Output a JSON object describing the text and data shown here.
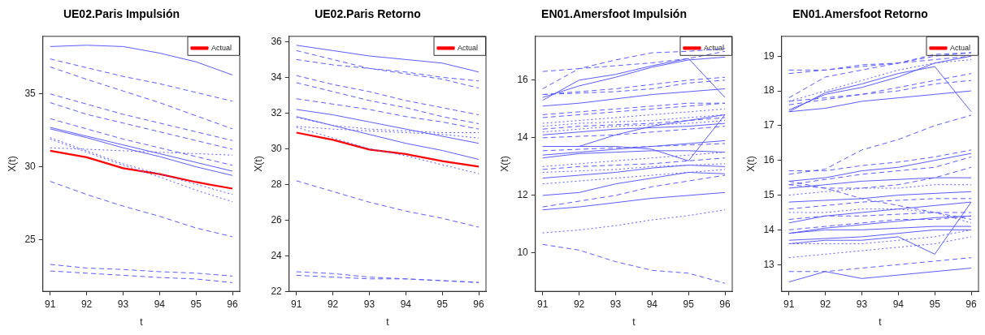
{
  "chart_data": [
    {
      "type": "line",
      "title": "UE02.Paris Impulsión",
      "xlabel": "t",
      "ylabel": "X(t)",
      "x": [
        91,
        92,
        93,
        94,
        95,
        96
      ],
      "xlim": [
        90.8,
        96.2
      ],
      "xticks": [
        91,
        92,
        93,
        94,
        95,
        96
      ],
      "ylim": [
        21.45,
        38.95
      ],
      "yticks": [
        25,
        30,
        35
      ],
      "grid": false,
      "legend": "top right",
      "marker": "none",
      "series": [
        {
          "color": "#5c5cff",
          "line_style": "solid",
          "values": [
            38.25,
            38.34,
            38.25,
            37.8,
            37.2,
            36.3
          ]
        },
        {
          "color": "#5c5cff",
          "line_style": "dashed",
          "values": [
            37.4,
            36.8,
            36.2,
            35.7,
            35.1,
            34.5
          ]
        },
        {
          "color": "#5c5cff",
          "line_style": "dashed",
          "values": [
            36.85,
            36.0,
            35.2,
            34.4,
            33.5,
            32.6
          ]
        },
        {
          "color": "#5c5cff",
          "line_style": "dashed",
          "values": [
            35.0,
            34.3,
            33.6,
            33.0,
            32.4,
            31.8
          ]
        },
        {
          "color": "#5c5cff",
          "line_style": "dashed",
          "values": [
            34.4,
            33.6,
            33.0,
            32.4,
            31.8,
            31.2
          ]
        },
        {
          "color": "#5c5cff",
          "line_style": "dashed",
          "values": [
            33.3,
            32.6,
            31.9,
            31.3,
            30.7,
            30.1
          ]
        },
        {
          "color": "#5c5cff",
          "line_style": "solid",
          "values": [
            32.7,
            32.1,
            31.5,
            30.9,
            30.3,
            29.7
          ]
        },
        {
          "color": "#5c5cff",
          "line_style": "solid",
          "values": [
            32.6,
            32.0,
            31.3,
            30.7,
            30.0,
            29.4
          ]
        },
        {
          "color": "#5c5cff",
          "line_style": "dotted",
          "values": [
            32.0,
            31.1,
            30.2,
            29.5,
            28.8,
            28.1
          ]
        },
        {
          "color": "#5c5cff",
          "line_style": "dotted",
          "values": [
            31.9,
            31.0,
            30.1,
            29.3,
            28.4,
            27.6
          ]
        },
        {
          "color": "#5c5cff",
          "line_style": "dotted",
          "values": [
            31.3,
            31.2,
            31.1,
            31.0,
            30.9,
            30.8
          ]
        },
        {
          "color": "#5c5cff",
          "line_style": "dashed",
          "values": [
            29.0,
            28.1,
            27.3,
            26.6,
            25.8,
            25.2
          ]
        },
        {
          "color": "#5c5cff",
          "line_style": "dashed",
          "values": [
            23.3,
            23.05,
            22.95,
            22.8,
            22.7,
            22.5
          ]
        },
        {
          "color": "#5c5cff",
          "line_style": "dashed",
          "values": [
            22.85,
            22.7,
            22.55,
            22.4,
            22.3,
            22.05
          ]
        },
        {
          "name": "Actual",
          "color": "#ff0000",
          "line_style": "solid",
          "values": [
            31.1,
            30.65,
            29.9,
            29.5,
            28.95,
            28.5
          ]
        }
      ]
    },
    {
      "type": "line",
      "title": "UE02.Paris Retorno",
      "xlabel": "t",
      "ylabel": "X(t)",
      "x": [
        91,
        92,
        93,
        94,
        95,
        96
      ],
      "xlim": [
        90.8,
        96.2
      ],
      "xticks": [
        91,
        92,
        93,
        94,
        95,
        96
      ],
      "ylim": [
        22,
        36.3
      ],
      "yticks": [
        22,
        24,
        26,
        28,
        30,
        32,
        34,
        36
      ],
      "grid": false,
      "legend": "top right",
      "marker": "none",
      "series": [
        {
          "color": "#5c5cff",
          "line_style": "solid",
          "values": [
            35.8,
            35.5,
            35.2,
            35.0,
            34.8,
            34.3
          ]
        },
        {
          "color": "#5c5cff",
          "line_style": "dashed",
          "values": [
            35.5,
            35.0,
            34.5,
            34.2,
            33.9,
            33.4
          ]
        },
        {
          "color": "#5c5cff",
          "line_style": "dashed",
          "values": [
            35.0,
            34.7,
            34.5,
            34.3,
            34.0,
            33.8
          ]
        },
        {
          "color": "#5c5cff",
          "line_style": "dashed",
          "values": [
            34.1,
            33.6,
            33.2,
            32.7,
            32.3,
            31.9
          ]
        },
        {
          "color": "#5c5cff",
          "line_style": "dashed",
          "values": [
            33.7,
            33.2,
            32.7,
            32.3,
            31.8,
            31.4
          ]
        },
        {
          "color": "#5c5cff",
          "line_style": "dashed",
          "values": [
            32.8,
            32.5,
            32.2,
            31.8,
            31.5,
            31.1
          ]
        },
        {
          "color": "#5c5cff",
          "line_style": "solid",
          "values": [
            32.2,
            31.9,
            31.5,
            31.1,
            30.7,
            30.3
          ]
        },
        {
          "color": "#5c5cff",
          "line_style": "solid",
          "values": [
            31.8,
            31.3,
            30.8,
            30.3,
            29.9,
            29.4
          ]
        },
        {
          "color": "#5c5cff",
          "line_style": "dotted",
          "values": [
            31.75,
            31.3,
            31.1,
            31.0,
            30.9,
            30.9
          ]
        },
        {
          "color": "#5c5cff",
          "line_style": "dotted",
          "values": [
            31.25,
            31.1,
            31.0,
            30.9,
            30.8,
            30.6
          ]
        },
        {
          "color": "#5c5cff",
          "line_style": "dotted",
          "values": [
            31.2,
            30.6,
            30.0,
            29.6,
            29.1,
            28.6
          ]
        },
        {
          "color": "#5c5cff",
          "line_style": "dashed",
          "values": [
            28.2,
            27.6,
            27.0,
            26.5,
            26.1,
            25.6
          ]
        },
        {
          "color": "#5c5cff",
          "line_style": "dashed",
          "values": [
            23.1,
            23.0,
            22.8,
            22.7,
            22.6,
            22.5
          ]
        },
        {
          "color": "#5c5cff",
          "line_style": "dashed",
          "values": [
            22.9,
            22.8,
            22.7,
            22.7,
            22.6,
            22.5
          ]
        },
        {
          "name": "Actual",
          "color": "#ff0000",
          "line_style": "solid",
          "values": [
            30.9,
            30.5,
            29.95,
            29.7,
            29.3,
            29.0
          ]
        }
      ]
    },
    {
      "type": "line",
      "title": "EN01.Amersfoot Impulsión",
      "xlabel": "t",
      "ylabel": "X(t)",
      "x": [
        91,
        92,
        93,
        94,
        95,
        96
      ],
      "xlim": [
        90.8,
        96.2
      ],
      "xticks": [
        91,
        92,
        93,
        94,
        95,
        96
      ],
      "ylim": [
        8.67,
        17.52
      ],
      "yticks": [
        10,
        12,
        14,
        16
      ],
      "grid": false,
      "legend": "top right",
      "marker": "none",
      "series": [
        {
          "color": "#5c5cff",
          "line_style": "dashed",
          "values": [
            16.3,
            16.4,
            16.7,
            16.95,
            17.0,
            17.1
          ]
        },
        {
          "color": "#5c5cff",
          "line_style": "dashed",
          "values": [
            15.7,
            16.4,
            16.5,
            16.6,
            16.75,
            17.0
          ]
        },
        {
          "color": "#5c5cff",
          "line_style": "solid",
          "values": [
            15.3,
            16.0,
            16.2,
            16.5,
            16.75,
            15.4
          ]
        },
        {
          "color": "#5c5cff",
          "line_style": "solid",
          "values": [
            15.4,
            15.8,
            16.1,
            16.45,
            16.7,
            16.8
          ]
        },
        {
          "color": "#5c5cff",
          "line_style": "dashed",
          "values": [
            15.5,
            15.6,
            15.7,
            15.85,
            16.0,
            16.1
          ]
        },
        {
          "color": "#5c5cff",
          "line_style": "dashed",
          "values": [
            15.5,
            15.55,
            15.6,
            15.7,
            15.9,
            16.0
          ]
        },
        {
          "color": "#5c5cff",
          "line_style": "solid",
          "values": [
            15.1,
            15.2,
            15.35,
            15.5,
            15.6,
            15.7
          ]
        },
        {
          "color": "#5c5cff",
          "line_style": "dashed",
          "values": [
            14.8,
            14.9,
            15.0,
            15.1,
            15.2,
            15.2
          ]
        },
        {
          "color": "#5c5cff",
          "line_style": "dashed",
          "values": [
            14.7,
            14.8,
            14.9,
            15.0,
            15.1,
            15.2
          ]
        },
        {
          "color": "#5c5cff",
          "line_style": "dotted",
          "values": [
            14.5,
            14.6,
            14.7,
            14.8,
            14.9,
            15.0
          ]
        },
        {
          "color": "#5c5cff",
          "line_style": "dotted",
          "values": [
            14.4,
            14.5,
            14.55,
            14.6,
            14.7,
            14.8
          ]
        },
        {
          "color": "#5c5cff",
          "line_style": "dashed",
          "values": [
            14.3,
            14.4,
            14.45,
            14.5,
            14.6,
            14.7
          ]
        },
        {
          "color": "#5c5cff",
          "line_style": "dotted",
          "values": [
            14.2,
            14.3,
            14.4,
            14.45,
            14.5,
            14.6
          ]
        },
        {
          "color": "#5c5cff",
          "line_style": "solid",
          "values": [
            14.1,
            14.2,
            14.3,
            14.35,
            14.4,
            14.5
          ]
        },
        {
          "color": "#5c5cff",
          "line_style": "dashed",
          "values": [
            14.0,
            14.05,
            14.1,
            14.2,
            14.3,
            14.4
          ]
        },
        {
          "color": "#5c5cff",
          "line_style": "solid",
          "values": [
            13.7,
            13.7,
            14.1,
            14.4,
            14.6,
            14.8
          ]
        },
        {
          "color": "#5c5cff",
          "line_style": "solid",
          "values": [
            13.7,
            13.7,
            13.7,
            13.6,
            13.2,
            14.8
          ]
        },
        {
          "color": "#5c5cff",
          "line_style": "solid",
          "values": [
            13.4,
            13.5,
            13.6,
            13.7,
            13.8,
            13.9
          ]
        },
        {
          "color": "#5c5cff",
          "line_style": "dashed",
          "values": [
            13.55,
            13.6,
            13.65,
            13.7,
            13.75,
            13.8
          ]
        },
        {
          "color": "#5c5cff",
          "line_style": "solid",
          "values": [
            13.3,
            13.45,
            13.5,
            13.55,
            13.55,
            13.5
          ]
        },
        {
          "color": "#5c5cff",
          "line_style": "dotted",
          "values": [
            13.0,
            13.1,
            13.2,
            13.3,
            13.4,
            13.5
          ]
        },
        {
          "color": "#5c5cff",
          "line_style": "dashed",
          "values": [
            12.9,
            13.0,
            13.05,
            13.1,
            13.2,
            13.3
          ]
        },
        {
          "color": "#5c5cff",
          "line_style": "dotted",
          "values": [
            12.8,
            12.85,
            12.9,
            13.0,
            13.05,
            13.1
          ]
        },
        {
          "color": "#5c5cff",
          "line_style": "solid",
          "values": [
            12.6,
            12.7,
            12.8,
            12.95,
            13.05,
            13.0
          ]
        },
        {
          "color": "#5c5cff",
          "line_style": "dotted",
          "values": [
            12.4,
            12.5,
            12.6,
            12.7,
            12.8,
            12.9
          ]
        },
        {
          "color": "#5c5cff",
          "line_style": "solid",
          "values": [
            12.0,
            12.1,
            12.4,
            12.6,
            12.8,
            12.75
          ]
        },
        {
          "color": "#5c5cff",
          "line_style": "dashed",
          "values": [
            11.6,
            11.8,
            12.0,
            12.3,
            12.5,
            12.7
          ]
        },
        {
          "color": "#5c5cff",
          "line_style": "solid",
          "values": [
            11.5,
            11.6,
            11.75,
            11.9,
            12.0,
            12.1
          ]
        },
        {
          "color": "#5c5cff",
          "line_style": "dotted",
          "values": [
            10.7,
            10.8,
            10.95,
            11.15,
            11.3,
            11.5
          ]
        },
        {
          "color": "#5c5cff",
          "line_style": "dashed",
          "values": [
            10.3,
            10.1,
            9.7,
            9.4,
            9.3,
            8.95
          ]
        },
        {
          "name": "Actual",
          "color": "#ff0000",
          "line_style": "solid",
          "values": [
            null,
            null,
            null,
            null,
            null,
            null
          ]
        }
      ]
    },
    {
      "type": "line",
      "title": "EN01.Amersfoot Retorno",
      "xlabel": "t",
      "ylabel": "X(t)",
      "x": [
        91,
        92,
        93,
        94,
        95,
        96
      ],
      "xlim": [
        90.8,
        96.2
      ],
      "xticks": [
        91,
        92,
        93,
        94,
        95,
        96
      ],
      "ylim": [
        12.23,
        19.57
      ],
      "yticks": [
        13,
        14,
        15,
        16,
        17,
        18,
        19
      ],
      "grid": false,
      "legend": "top right",
      "marker": "none",
      "series": [
        {
          "color": "#5c5cff",
          "line_style": "dashed",
          "values": [
            18.6,
            18.6,
            18.7,
            18.8,
            18.9,
            19.0
          ]
        },
        {
          "color": "#5c5cff",
          "line_style": "dashed",
          "values": [
            18.5,
            18.6,
            18.75,
            18.8,
            19.0,
            19.1
          ]
        },
        {
          "color": "#5c5cff",
          "line_style": "dashed",
          "values": [
            17.8,
            18.4,
            18.6,
            18.8,
            19.05,
            19.1
          ]
        },
        {
          "color": "#5c5cff",
          "line_style": "dotted",
          "values": [
            17.7,
            18.0,
            18.3,
            18.6,
            18.8,
            18.9
          ]
        },
        {
          "color": "#5c5cff",
          "line_style": "solid",
          "values": [
            17.4,
            17.95,
            18.2,
            18.5,
            18.7,
            17.4
          ]
        },
        {
          "color": "#5c5cff",
          "line_style": "solid",
          "values": [
            17.45,
            17.9,
            18.1,
            18.4,
            18.8,
            19.0
          ]
        },
        {
          "color": "#5c5cff",
          "line_style": "dashed",
          "values": [
            17.6,
            17.75,
            17.9,
            18.1,
            18.3,
            18.5
          ]
        },
        {
          "color": "#5c5cff",
          "line_style": "dashed",
          "values": [
            17.7,
            17.8,
            17.9,
            18.0,
            18.2,
            18.3
          ]
        },
        {
          "color": "#5c5cff",
          "line_style": "solid",
          "values": [
            17.4,
            17.5,
            17.7,
            17.8,
            17.9,
            18.0
          ]
        },
        {
          "color": "#5c5cff",
          "line_style": "dashed",
          "values": [
            15.6,
            15.75,
            16.3,
            16.6,
            17.0,
            17.3
          ]
        },
        {
          "color": "#5c5cff",
          "line_style": "dashed",
          "values": [
            15.7,
            15.7,
            15.85,
            15.95,
            16.1,
            16.3
          ]
        },
        {
          "color": "#5c5cff",
          "line_style": "solid",
          "values": [
            15.4,
            15.5,
            15.7,
            15.8,
            16.0,
            16.2
          ]
        },
        {
          "color": "#5c5cff",
          "line_style": "dashed",
          "values": [
            15.3,
            15.45,
            15.6,
            15.7,
            15.8,
            16.1
          ]
        },
        {
          "color": "#5c5cff",
          "line_style": "dashed",
          "values": [
            15.4,
            15.2,
            15.2,
            15.3,
            15.5,
            15.8
          ]
        },
        {
          "color": "#5c5cff",
          "line_style": "solid",
          "values": [
            15.2,
            15.3,
            15.4,
            15.45,
            15.5,
            15.5
          ]
        },
        {
          "color": "#5c5cff",
          "line_style": "dashed",
          "values": [
            15.3,
            15.2,
            14.9,
            14.7,
            14.5,
            14.3
          ]
        },
        {
          "color": "#5c5cff",
          "line_style": "dotted",
          "values": [
            15.0,
            15.1,
            15.2,
            15.2,
            15.3,
            15.3
          ]
        },
        {
          "color": "#5c5cff",
          "line_style": "solid",
          "values": [
            14.8,
            14.85,
            14.9,
            15.0,
            15.05,
            15.1
          ]
        },
        {
          "color": "#5c5cff",
          "line_style": "dashed",
          "values": [
            14.6,
            14.7,
            14.8,
            14.85,
            14.9,
            14.9
          ]
        },
        {
          "color": "#5c5cff",
          "line_style": "dotted",
          "values": [
            14.5,
            14.5,
            14.6,
            14.6,
            14.5,
            14.2
          ]
        },
        {
          "color": "#5c5cff",
          "line_style": "solid",
          "values": [
            14.2,
            14.4,
            14.5,
            14.6,
            14.7,
            14.8
          ]
        },
        {
          "color": "#5c5cff",
          "line_style": "dashed",
          "values": [
            14.3,
            14.4,
            14.4,
            14.45,
            14.5,
            14.5
          ]
        },
        {
          "color": "#5c5cff",
          "line_style": "solid",
          "values": [
            13.9,
            14.05,
            14.15,
            14.25,
            14.35,
            14.4
          ]
        },
        {
          "color": "#5c5cff",
          "line_style": "dashed",
          "values": [
            14.0,
            14.1,
            14.2,
            14.3,
            14.3,
            14.4
          ]
        },
        {
          "color": "#5c5cff",
          "line_style": "solid",
          "values": [
            13.9,
            14.0,
            14.0,
            14.05,
            14.1,
            14.1
          ]
        },
        {
          "color": "#5c5cff",
          "line_style": "solid",
          "values": [
            13.7,
            13.75,
            13.8,
            13.9,
            14.0,
            14.0
          ]
        },
        {
          "color": "#5c5cff",
          "line_style": "solid",
          "values": [
            13.6,
            13.7,
            13.7,
            13.8,
            13.3,
            14.8
          ]
        },
        {
          "color": "#5c5cff",
          "line_style": "dotted",
          "values": [
            13.6,
            13.6,
            13.6,
            13.7,
            13.8,
            14.0
          ]
        },
        {
          "color": "#5c5cff",
          "line_style": "dotted",
          "values": [
            13.2,
            13.3,
            13.4,
            13.5,
            13.6,
            13.8
          ]
        },
        {
          "color": "#5c5cff",
          "line_style": "dashed",
          "values": [
            12.8,
            12.8,
            12.9,
            13.0,
            13.1,
            13.2
          ]
        },
        {
          "color": "#5c5cff",
          "line_style": "solid",
          "values": [
            12.5,
            12.8,
            12.6,
            12.7,
            12.8,
            12.9
          ]
        },
        {
          "name": "Actual",
          "color": "#ff0000",
          "line_style": "solid",
          "values": [
            null,
            null,
            null,
            null,
            null,
            null
          ]
        }
      ]
    }
  ]
}
